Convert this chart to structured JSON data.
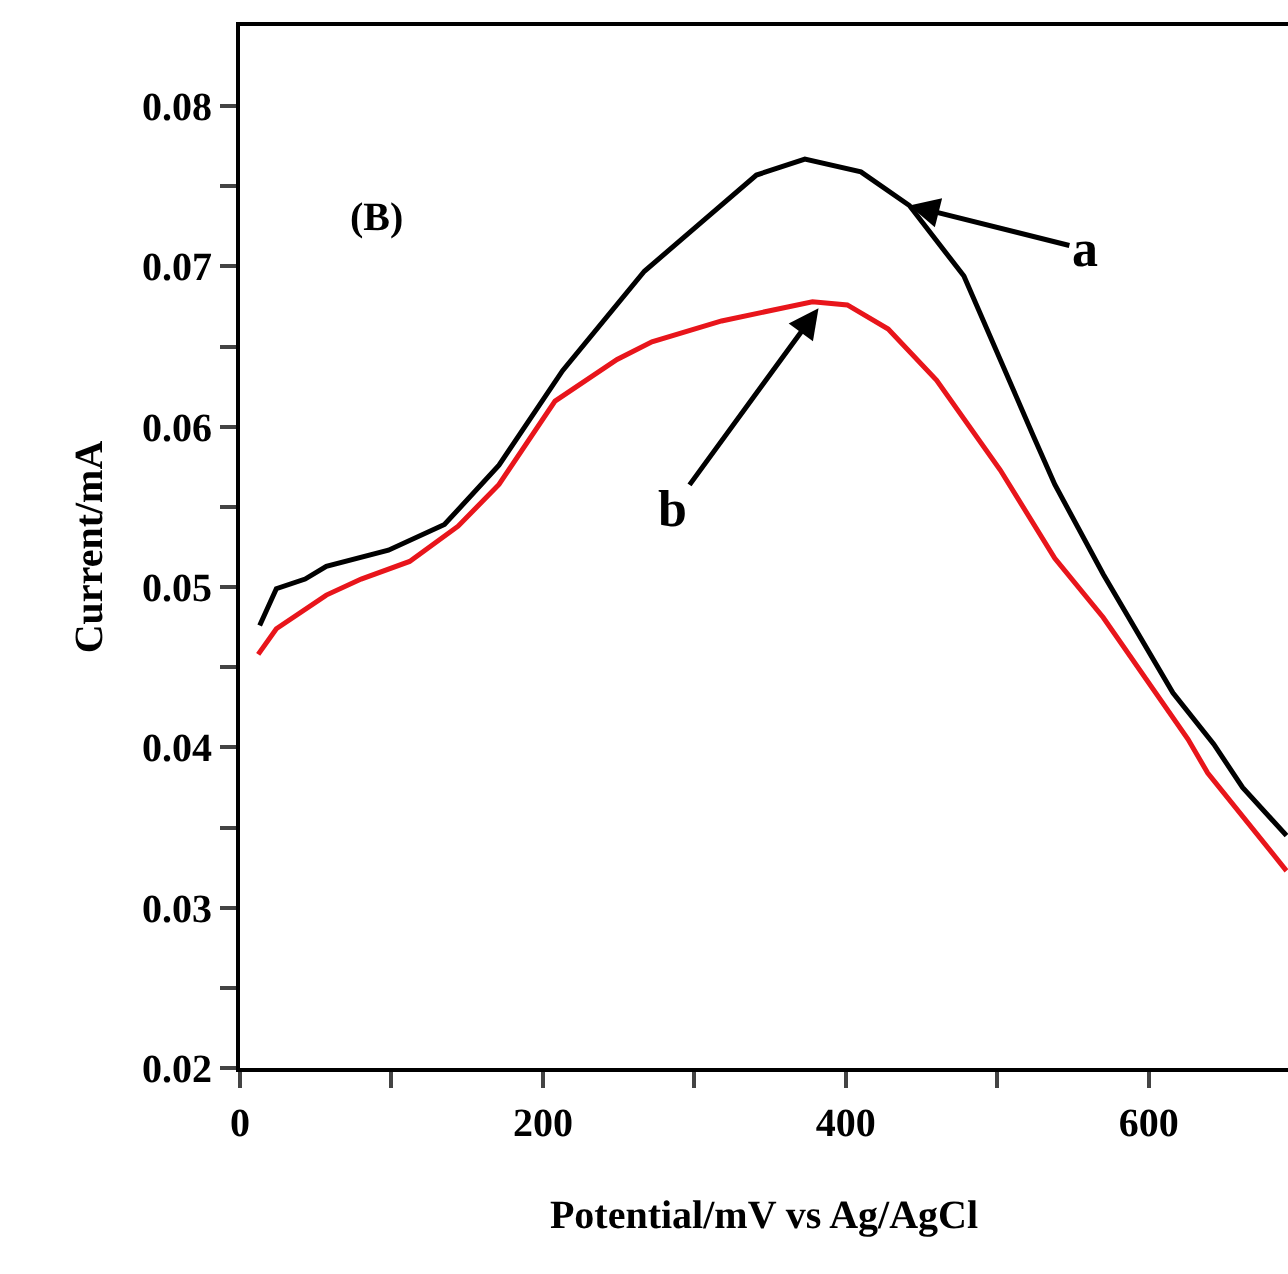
{
  "chart_data": {
    "type": "line",
    "xlabel": "Potential/mV vs Ag/AgCl",
    "ylabel": "Current/mA",
    "xlim": [
      0,
      692
    ],
    "ylim": [
      0.02,
      0.085
    ],
    "xticks": [
      0,
      {
        "value": 100,
        "label": null
      },
      200,
      {
        "value": 300,
        "label": null
      },
      400,
      {
        "value": 500,
        "label": null
      },
      600
    ],
    "yticks": [
      0.02,
      {
        "value": 0.025,
        "label": null
      },
      0.03,
      {
        "value": 0.035,
        "label": null
      },
      0.04,
      {
        "value": 0.045,
        "label": null
      },
      0.05,
      {
        "value": 0.055,
        "label": null
      },
      0.06,
      {
        "value": 0.065,
        "label": null
      },
      0.07,
      {
        "value": 0.075,
        "label": null
      },
      0.08
    ],
    "grid": false,
    "marker": "none",
    "line_style": "solid",
    "series": [
      {
        "color": "#000000",
        "x": [
          13,
          24,
          43,
          57,
          98,
          135,
          171,
          213,
          267,
          304,
          341,
          373,
          410,
          442,
          478,
          524,
          538,
          570,
          616,
          643,
          662,
          691
        ],
        "values": [
          0.0476,
          0.0499,
          0.0505,
          0.0513,
          0.0523,
          0.0539,
          0.0576,
          0.0635,
          0.0697,
          0.0727,
          0.0757,
          0.0767,
          0.0759,
          0.0738,
          0.0694,
          0.0594,
          0.0564,
          0.0508,
          0.0434,
          0.0402,
          0.0375,
          0.0345
        ]
      },
      {
        "color": "#e8151b",
        "x": [
          12,
          24,
          57,
          80,
          112,
          144,
          171,
          208,
          249,
          272,
          318,
          378,
          401,
          428,
          460,
          502,
          538,
          570,
          626,
          639,
          691
        ],
        "values": [
          0.0458,
          0.0474,
          0.0495,
          0.0505,
          0.0516,
          0.0538,
          0.0564,
          0.0616,
          0.0642,
          0.0653,
          0.0666,
          0.0678,
          0.0676,
          0.0661,
          0.0629,
          0.0573,
          0.0518,
          0.0481,
          0.0405,
          0.0384,
          0.0323
        ]
      }
    ],
    "annotations": [
      "(B)",
      {
        "text": "a",
        "x": 442,
        "y": 0.0738
      },
      {
        "text": "b",
        "x": 382,
        "y": 0.0674
      }
    ]
  }
}
